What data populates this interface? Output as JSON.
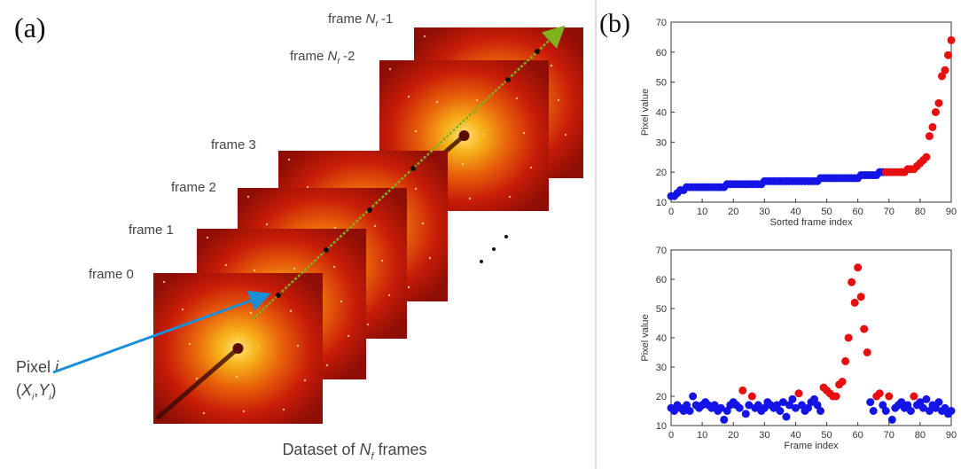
{
  "panel_a": {
    "label": "(a)",
    "frames": [
      "frame 0",
      "frame 1",
      "frame 2",
      "frame 3"
    ],
    "frame_n2": [
      "frame ",
      "N",
      "f",
      " -2"
    ],
    "frame_n1": [
      "frame ",
      "N",
      "f",
      " -1"
    ],
    "pixel": [
      "Pixel ",
      "i"
    ],
    "coords": [
      "(",
      "X",
      "i",
      ",",
      "Y",
      "i",
      ")"
    ],
    "caption": [
      "Dataset of ",
      "N",
      "f",
      " frames"
    ]
  },
  "panel_b": {
    "label": "(b)"
  },
  "chart_data": [
    {
      "type": "scatter",
      "xlabel": "Sorted frame index",
      "ylabel": "Pixel value",
      "xlim": [
        0,
        90
      ],
      "xticks": [
        0,
        10,
        20,
        30,
        40,
        50,
        60,
        70,
        80,
        90
      ],
      "ylim": [
        10,
        70
      ],
      "yticks": [
        10,
        20,
        30,
        40,
        50,
        60,
        70
      ],
      "series": [
        {
          "color": "#1414e6",
          "x": [
            0,
            1,
            2,
            3,
            4,
            5,
            6,
            7,
            8,
            9,
            10,
            11,
            12,
            13,
            14,
            15,
            16,
            17,
            18,
            19,
            20,
            21,
            22,
            23,
            24,
            25,
            26,
            27,
            28,
            29,
            30,
            31,
            32,
            33,
            34,
            35,
            36,
            37,
            38,
            39,
            40,
            41,
            42,
            43,
            44,
            45,
            46,
            47,
            48,
            49,
            50,
            51,
            52,
            53,
            54,
            55,
            56,
            57,
            58,
            59,
            60,
            61,
            62,
            63,
            64,
            65,
            66,
            67,
            68
          ],
          "values": [
            12,
            12,
            13,
            14,
            14,
            15,
            15,
            15,
            15,
            15,
            15,
            15,
            15,
            15,
            15,
            15,
            15,
            15,
            16,
            16,
            16,
            16,
            16,
            16,
            16,
            16,
            16,
            16,
            16,
            16,
            17,
            17,
            17,
            17,
            17,
            17,
            17,
            17,
            17,
            17,
            17,
            17,
            17,
            17,
            17,
            17,
            17,
            17,
            18,
            18,
            18,
            18,
            18,
            18,
            18,
            18,
            18,
            18,
            18,
            18,
            18,
            19,
            19,
            19,
            19,
            19,
            19,
            20,
            20
          ]
        },
        {
          "color": "#e60e0e",
          "x": [
            69,
            70,
            71,
            72,
            73,
            74,
            75,
            76,
            77,
            78,
            79,
            80,
            81,
            82,
            83,
            84,
            85,
            86,
            87,
            88,
            89,
            90
          ],
          "values": [
            20,
            20,
            20,
            20,
            20,
            20,
            20,
            21,
            21,
            21,
            22,
            23,
            24,
            25,
            32,
            35,
            40,
            43,
            52,
            54,
            59,
            64
          ]
        }
      ]
    },
    {
      "type": "scatter",
      "xlabel": "Frame index",
      "ylabel": "Pixel value",
      "xlim": [
        0,
        90
      ],
      "xticks": [
        0,
        10,
        20,
        30,
        40,
        50,
        60,
        70,
        80,
        90
      ],
      "ylim": [
        10,
        70
      ],
      "yticks": [
        10,
        20,
        30,
        40,
        50,
        60,
        70
      ],
      "series": [
        {
          "color": "#1414e6",
          "x": [
            0,
            1,
            2,
            3,
            4,
            5,
            6,
            7,
            8,
            9,
            10,
            11,
            12,
            13,
            14,
            15,
            16,
            17,
            18,
            19,
            20,
            21,
            22,
            24,
            25,
            27,
            28,
            29,
            30,
            31,
            32,
            33,
            34,
            35,
            36,
            37,
            38,
            39,
            40,
            42,
            43,
            44,
            45,
            46,
            47,
            48,
            64,
            65,
            68,
            69,
            71,
            72,
            73,
            74,
            75,
            76,
            77,
            79,
            80,
            81,
            82,
            83,
            84,
            85,
            86,
            87,
            88,
            89,
            90
          ],
          "values": [
            16,
            15,
            17,
            16,
            15,
            17,
            15,
            20,
            17,
            16,
            17,
            18,
            17,
            16,
            17,
            15,
            16,
            12,
            15,
            17,
            18,
            17,
            16,
            14,
            17,
            16,
            17,
            15,
            16,
            18,
            17,
            16,
            17,
            15,
            18,
            13,
            17,
            19,
            16,
            17,
            15,
            16,
            18,
            19,
            17,
            15,
            18,
            15,
            17,
            15,
            12,
            16,
            17,
            18,
            16,
            17,
            15,
            17,
            18,
            16,
            19,
            15,
            17,
            16,
            18,
            15,
            16,
            14,
            15
          ]
        },
        {
          "color": "#e60e0e",
          "x": [
            23,
            26,
            41,
            49,
            50,
            51,
            52,
            53,
            54,
            55,
            56,
            57,
            58,
            59,
            60,
            61,
            62,
            63,
            66,
            67,
            70,
            78
          ],
          "values": [
            22,
            20,
            21,
            23,
            22,
            21,
            20,
            20,
            24,
            25,
            32,
            40,
            59,
            52,
            64,
            54,
            43,
            35,
            20,
            21,
            20,
            20
          ]
        }
      ]
    }
  ]
}
